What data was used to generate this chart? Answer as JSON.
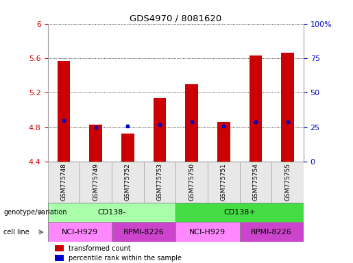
{
  "title": "GDS4970 / 8081620",
  "samples": [
    "GSM775748",
    "GSM775749",
    "GSM775752",
    "GSM775753",
    "GSM775750",
    "GSM775751",
    "GSM775754",
    "GSM775755"
  ],
  "bar_values": [
    5.57,
    4.83,
    4.73,
    5.14,
    5.3,
    4.86,
    5.63,
    5.66
  ],
  "percentile_values": [
    30,
    25,
    26,
    27,
    29,
    26,
    29,
    29
  ],
  "y_min": 4.4,
  "y_max": 6.0,
  "y_ticks": [
    4.4,
    4.8,
    5.2,
    5.6,
    6.0
  ],
  "y_tick_labels": [
    "4.4",
    "4.8",
    "5.2",
    "5.6",
    "6"
  ],
  "y_right_ticks": [
    0,
    25,
    50,
    75,
    100
  ],
  "y_right_labels": [
    "0",
    "25",
    "50",
    "75",
    "100%"
  ],
  "bar_color": "#cc0000",
  "percentile_color": "#0000cc",
  "bar_width": 0.4,
  "genotype_groups": [
    {
      "label": "CD138-",
      "start": 0,
      "end": 4,
      "color": "#aaffaa"
    },
    {
      "label": "CD138+",
      "start": 4,
      "end": 8,
      "color": "#44dd44"
    }
  ],
  "cell_line_groups": [
    {
      "label": "NCI-H929",
      "start": 0,
      "end": 2,
      "color": "#ff88ff"
    },
    {
      "label": "RPMI-8226",
      "start": 2,
      "end": 4,
      "color": "#cc44cc"
    },
    {
      "label": "NCI-H929",
      "start": 4,
      "end": 6,
      "color": "#ff88ff"
    },
    {
      "label": "RPMI-8226",
      "start": 6,
      "end": 8,
      "color": "#cc44cc"
    }
  ],
  "legend_items": [
    {
      "label": "transformed count",
      "color": "#cc0000"
    },
    {
      "label": "percentile rank within the sample",
      "color": "#0000cc"
    }
  ],
  "bg_color": "#ffffff",
  "tick_label_color_left": "#cc0000",
  "tick_label_color_right": "#0000cc",
  "label_left_genotype": "genotype/variation",
  "label_left_cell": "cell line"
}
